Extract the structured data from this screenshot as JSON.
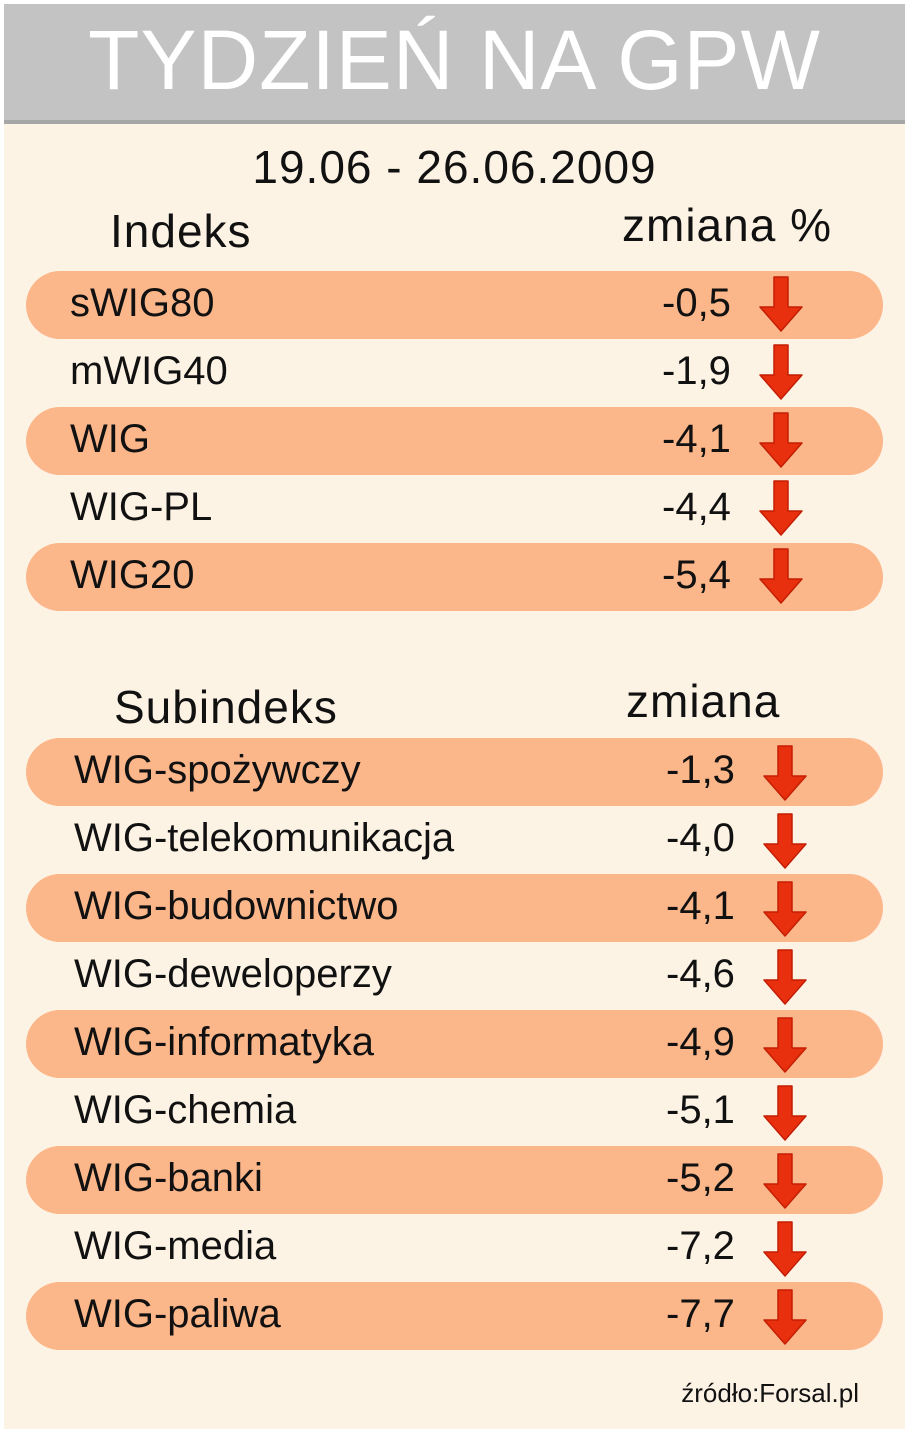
{
  "header": {
    "title": "TYDZIEŃ NA GPW",
    "date_range": "19.06 - 26.06.2009"
  },
  "indices": {
    "col_name": "Indeks",
    "col_change": "zmiana %"
  },
  "subindices": {
    "col_name": "Subindeks",
    "col_change": "zmiana"
  },
  "source": "źródło:Forsal.pl",
  "colors": {
    "band": "#fbb68a",
    "background": "#fdf3e5",
    "header": "#c3c3c3",
    "arrow": "#e8300e",
    "arrow_edge": "#c41e04"
  },
  "chart_data": [
    {
      "type": "table",
      "columns": [
        "Indeks",
        "zmiana %"
      ],
      "rows": [
        {
          "name": "sWIG80",
          "value_text": "-0,5",
          "value": -0.5,
          "direction": "down"
        },
        {
          "name": "mWIG40",
          "value_text": "-1,9",
          "value": -1.9,
          "direction": "down"
        },
        {
          "name": "WIG",
          "value_text": "-4,1",
          "value": -4.1,
          "direction": "down"
        },
        {
          "name": "WIG-PL",
          "value_text": "-4,4",
          "value": -4.4,
          "direction": "down"
        },
        {
          "name": "WIG20",
          "value_text": "-5,4",
          "value": -5.4,
          "direction": "down"
        }
      ]
    },
    {
      "type": "table",
      "columns": [
        "Subindeks",
        "zmiana"
      ],
      "rows": [
        {
          "name": "WIG-spożywczy",
          "value_text": "-1,3",
          "value": -1.3,
          "direction": "down"
        },
        {
          "name": "WIG-telekomunikacja",
          "value_text": "-4,0",
          "value": -4.0,
          "direction": "down"
        },
        {
          "name": "WIG-budownictwo",
          "value_text": "-4,1",
          "value": -4.1,
          "direction": "down"
        },
        {
          "name": "WIG-deweloperzy",
          "value_text": "-4,6",
          "value": -4.6,
          "direction": "down"
        },
        {
          "name": "WIG-informatyka",
          "value_text": "-4,9",
          "value": -4.9,
          "direction": "down"
        },
        {
          "name": "WIG-chemia",
          "value_text": "-5,1",
          "value": -5.1,
          "direction": "down"
        },
        {
          "name": "WIG-banki",
          "value_text": "-5,2",
          "value": -5.2,
          "direction": "down"
        },
        {
          "name": "WIG-media",
          "value_text": "-7,2",
          "value": -7.2,
          "direction": "down"
        },
        {
          "name": "WIG-paliwa",
          "value_text": "-7,7",
          "value": -7.7,
          "direction": "down"
        }
      ]
    }
  ]
}
